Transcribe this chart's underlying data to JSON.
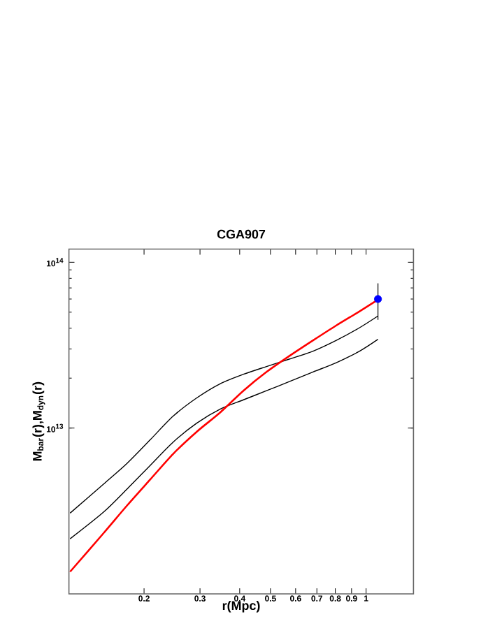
{
  "chart_data": {
    "type": "line",
    "title": "CGA907",
    "xlabel": "r(Mpc)",
    "ylabel": "M$_{bar}$(r),M$_{dyn}$(r)",
    "log": "xy",
    "xlim": [
      0.116,
      1.41
    ],
    "ylim": [
      1000000000000.0,
      120000000000000.0
    ],
    "xticks": [
      0.2,
      0.3,
      0.4,
      0.5,
      0.6,
      0.7,
      0.8,
      0.9,
      1
    ],
    "yticks": [
      {
        "value": 10000000000000.0,
        "label": "10$^{13}$"
      },
      {
        "value": 100000000000000.0,
        "label": "10$^{14}$"
      }
    ],
    "series": [
      {
        "color": "#000000",
        "x": [
          0.117,
          0.149,
          0.177,
          0.209,
          0.247,
          0.293,
          0.347,
          0.411,
          0.486,
          0.575,
          0.681,
          0.806,
          0.954,
          1.09
        ],
        "values": [
          3070000000000.0,
          4590000000000.0,
          6140000000000.0,
          8490000000000.0,
          11800000000000.0,
          15200000000000.0,
          18500000000000.0,
          21100000000000.0,
          23500000000000.0,
          26100000000000.0,
          29100000000000.0,
          33800000000000.0,
          40300000000000.0,
          47400000000000.0
        ]
      },
      {
        "color": "#000000",
        "x": [
          0.117,
          0.149,
          0.177,
          0.209,
          0.247,
          0.293,
          0.347,
          0.411,
          0.486,
          0.575,
          0.681,
          0.806,
          0.954,
          1.09
        ],
        "values": [
          2150000000000.0,
          3110000000000.0,
          4300000000000.0,
          5950000000000.0,
          8230000000000.0,
          10700000000000.0,
          13000000000000.0,
          14800000000000.0,
          16800000000000.0,
          19100000000000.0,
          21800000000000.0,
          24800000000000.0,
          29100000000000.0,
          34300000000000.0
        ]
      },
      {
        "color": "#ff0000",
        "x": [
          0.117,
          0.149,
          0.177,
          0.209,
          0.247,
          0.293,
          0.347,
          0.411,
          0.486,
          0.575,
          0.681,
          0.806,
          0.954,
          1.09
        ],
        "values": [
          1360000000000.0,
          2320000000000.0,
          3420000000000.0,
          4890000000000.0,
          6990000000000.0,
          9500000000000.0,
          12400000000000.0,
          16800000000000.0,
          21800000000000.0,
          27300000000000.0,
          33800000000000.0,
          41600000000000.0,
          50600000000000.0,
          59500000000000.0
        ]
      },
      {
        "type": "scatter",
        "color": "#0000ff",
        "marker": "circle",
        "x": [
          1.09
        ],
        "values": [
          60000000000000.0
        ],
        "errors": [
          [
            45000000000000.0,
            74600000000000.0
          ]
        ]
      }
    ]
  }
}
